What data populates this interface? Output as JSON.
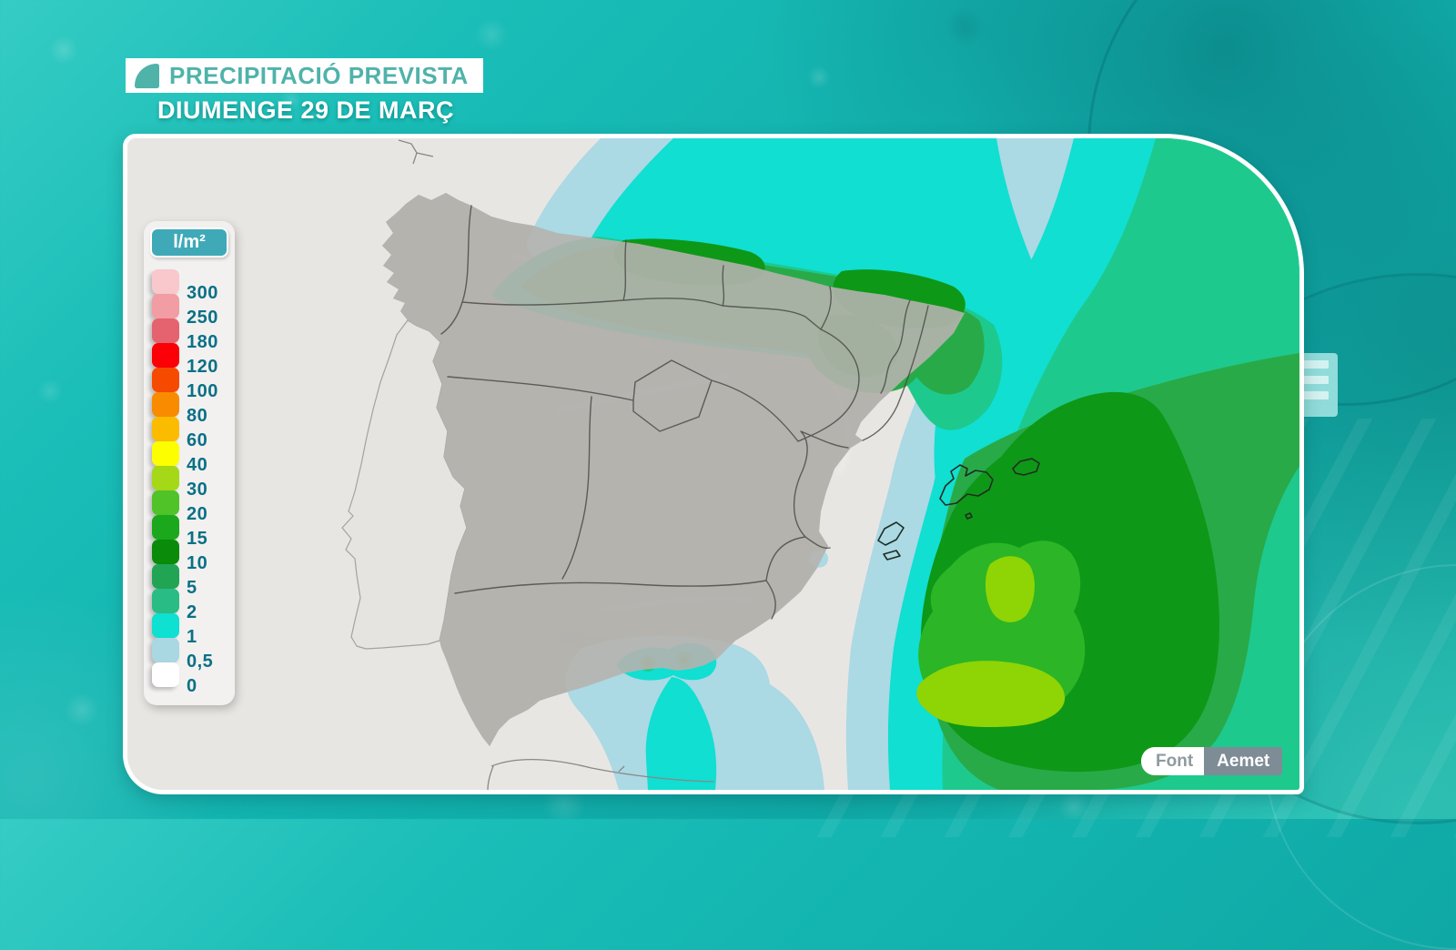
{
  "header": {
    "title": "PRECIPITACIÓ PREVISTA",
    "subtitle": "DIUMENGE 29 DE MARÇ"
  },
  "legend": {
    "unit": "l/m²",
    "entries": [
      {
        "label": "300",
        "color": "#f8c8cd"
      },
      {
        "label": "250",
        "color": "#f29ca4"
      },
      {
        "label": "180",
        "color": "#e4636e"
      },
      {
        "label": "120",
        "color": "#fb0007"
      },
      {
        "label": "100",
        "color": "#f64a00"
      },
      {
        "label": "80",
        "color": "#f98b00"
      },
      {
        "label": "60",
        "color": "#fbbc00"
      },
      {
        "label": "40",
        "color": "#fdff00"
      },
      {
        "label": "30",
        "color": "#a5d816"
      },
      {
        "label": "20",
        "color": "#4fc328"
      },
      {
        "label": "15",
        "color": "#1ca81c"
      },
      {
        "label": "10",
        "color": "#0a8b0a"
      },
      {
        "label": "5",
        "color": "#22a455"
      },
      {
        "label": "2",
        "color": "#2abc85"
      },
      {
        "label": "1",
        "color": "#0ee0d2"
      },
      {
        "label": "0,5",
        "color": "#a9d7e2"
      },
      {
        "label": "0",
        "color": "#ffffff"
      }
    ]
  },
  "source": {
    "label": "Font",
    "value": "Aemet"
  },
  "map": {
    "region": "Iberian Peninsula and Balearic Islands",
    "sea_color": "#e8e6e3",
    "spain_fill": "#b5b2ae",
    "portugal_fill": "#e6e4e1",
    "levels": {
      "l05": "#abd9e4",
      "l1": "#10dfd2",
      "l2": "#1ec98e",
      "l5": "#29aa48",
      "l10": "#0e9817",
      "l15": "#2cb527",
      "l30": "#8fd404"
    }
  },
  "theme": {
    "accent": "#4fb3aa",
    "legend_header_bg": "#3fa9b8",
    "legend_number_color": "#0a7086"
  }
}
